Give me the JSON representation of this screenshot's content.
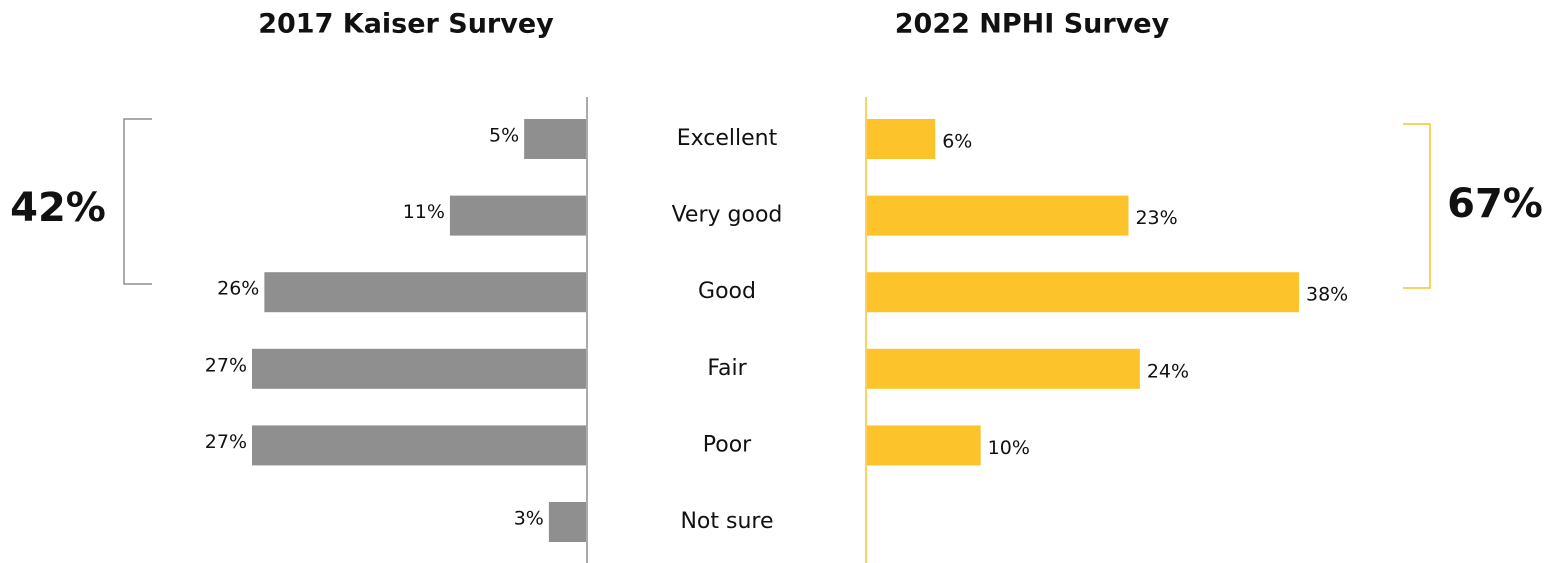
{
  "chart_data": {
    "type": "bar",
    "orientation": "horizontal",
    "categories": [
      "Excellent",
      "Very good",
      "Good",
      "Fair",
      "Poor",
      "Not sure"
    ],
    "series": [
      {
        "name": "2017 Kaiser Survey",
        "color": "#8f8f8f",
        "direction": "left",
        "values": [
          5,
          11,
          26,
          27,
          27,
          3
        ],
        "value_labels": [
          "5%",
          "11%",
          "26%",
          "27%",
          "27%",
          "3%"
        ],
        "xlim": [
          0,
          27
        ]
      },
      {
        "name": "2022 NPHI Survey",
        "color": "#fcc42a",
        "direction": "right",
        "values": [
          6,
          23,
          38,
          24,
          10,
          null
        ],
        "value_labels": [
          "6%",
          "23%",
          "38%",
          "24%",
          "10%",
          null
        ],
        "xlim": [
          0,
          38
        ]
      }
    ],
    "annotations": [
      "42%",
      "67%"
    ]
  }
}
